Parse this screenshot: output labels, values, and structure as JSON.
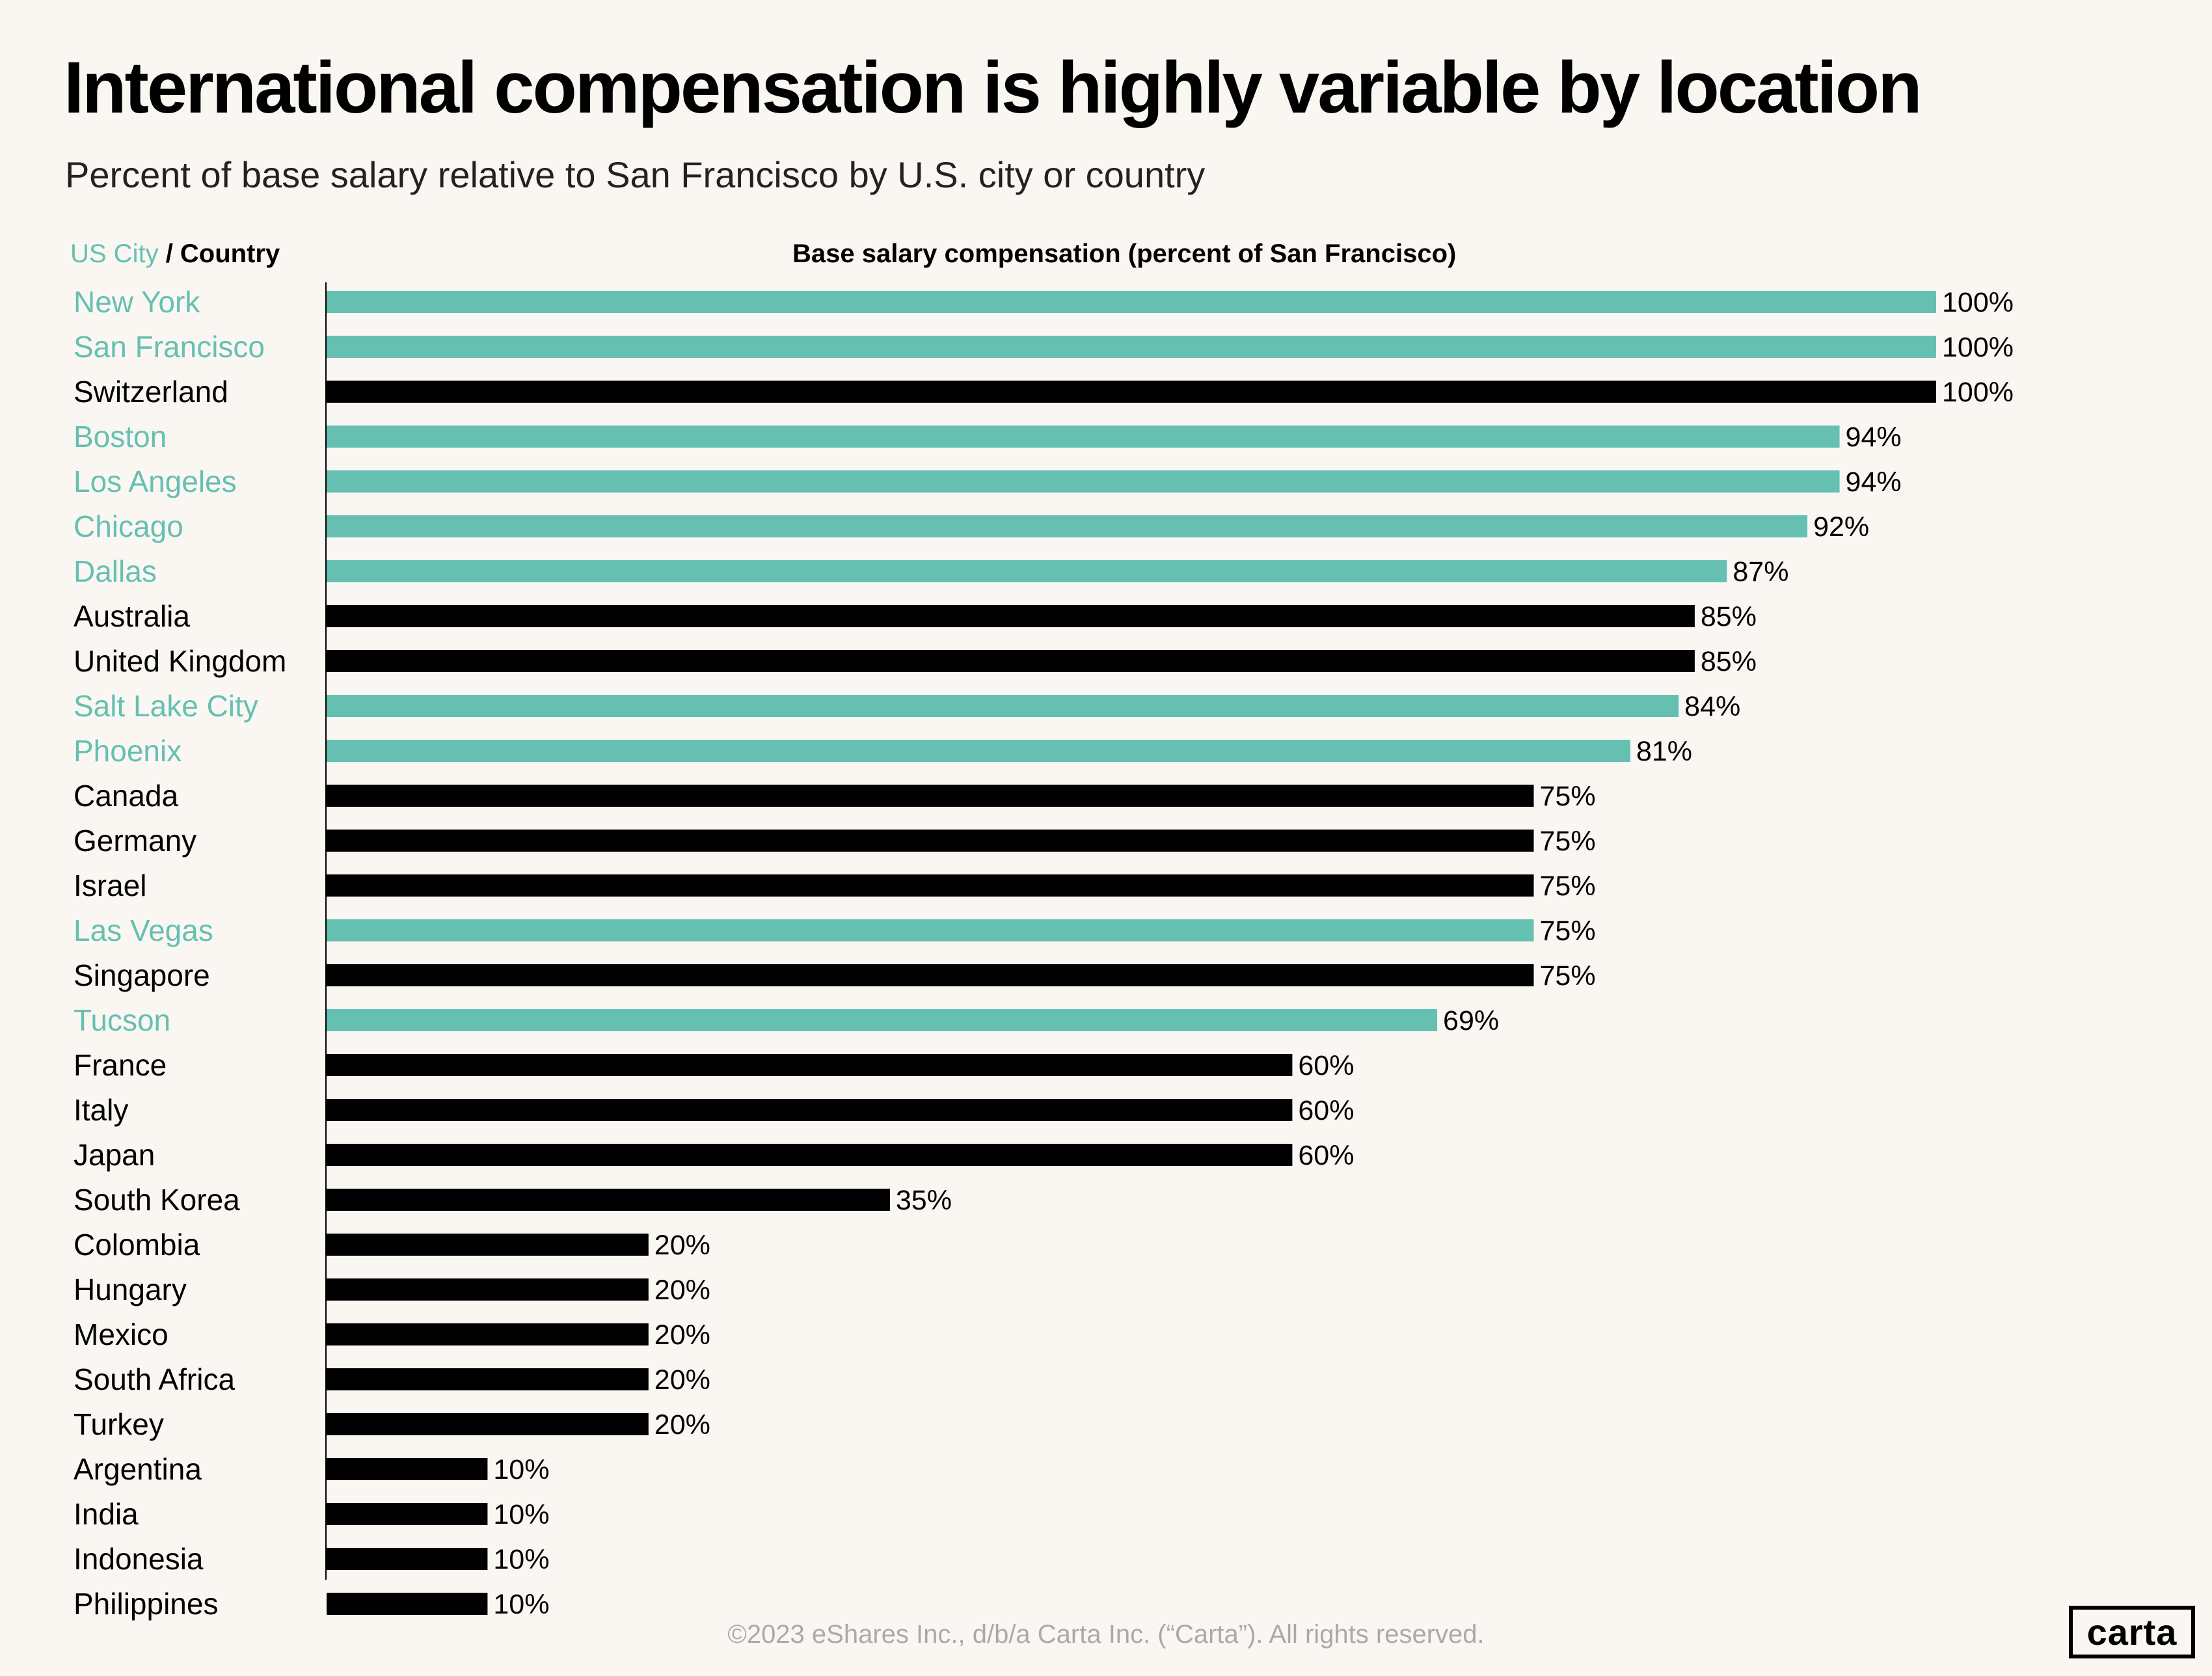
{
  "title": "International compensation is highly variable by location",
  "subtitle": "Percent of base salary relative to San Francisco by U.S. city or country",
  "footer": "©2023 eShares Inc., d/b/a Carta Inc. (“Carta”). All rights reserved.",
  "logo": "carta",
  "colors": {
    "us_city": "#66c0b1",
    "country": "#000000",
    "background": "#faf7f3"
  },
  "chart_data": {
    "type": "bar",
    "orientation": "horizontal",
    "row_header": {
      "us_city": "US City",
      "separator": " / ",
      "country": "Country"
    },
    "xlabel": "Base salary compensation (percent of San Francisco)",
    "xlim": [
      0,
      100
    ],
    "grid": false,
    "categories": [
      "New York",
      "San Francisco",
      "Switzerland",
      "Boston",
      "Los Angeles",
      "Chicago",
      "Dallas",
      "Australia",
      "United Kingdom",
      "Salt Lake City",
      "Phoenix",
      "Canada",
      "Germany",
      "Israel",
      "Las Vegas",
      "Singapore",
      "Tucson",
      "France",
      "Italy",
      "Japan",
      "South Korea",
      "Colombia",
      "Hungary",
      "Mexico",
      "South Africa",
      "Turkey",
      "Argentina",
      "India",
      "Indonesia",
      "Philippines"
    ],
    "values": [
      100,
      100,
      100,
      94,
      94,
      92,
      87,
      85,
      85,
      84,
      81,
      75,
      75,
      75,
      75,
      75,
      69,
      60,
      60,
      60,
      35,
      20,
      20,
      20,
      20,
      20,
      10,
      10,
      10,
      10
    ],
    "labels": [
      "100%",
      "100%",
      "100%",
      "94%",
      "94%",
      "92%",
      "87%",
      "85%",
      "85%",
      "84%",
      "81%",
      "75%",
      "75%",
      "75%",
      "75%",
      "75%",
      "69%",
      "60%",
      "60%",
      "60%",
      "35%",
      "20%",
      "20%",
      "20%",
      "20%",
      "20%",
      "10%",
      "10%",
      "10%",
      "10%"
    ],
    "group": [
      "us_city",
      "us_city",
      "country",
      "us_city",
      "us_city",
      "us_city",
      "us_city",
      "country",
      "country",
      "us_city",
      "us_city",
      "country",
      "country",
      "country",
      "us_city",
      "country",
      "us_city",
      "country",
      "country",
      "country",
      "country",
      "country",
      "country",
      "country",
      "country",
      "country",
      "country",
      "country",
      "country",
      "country"
    ]
  }
}
